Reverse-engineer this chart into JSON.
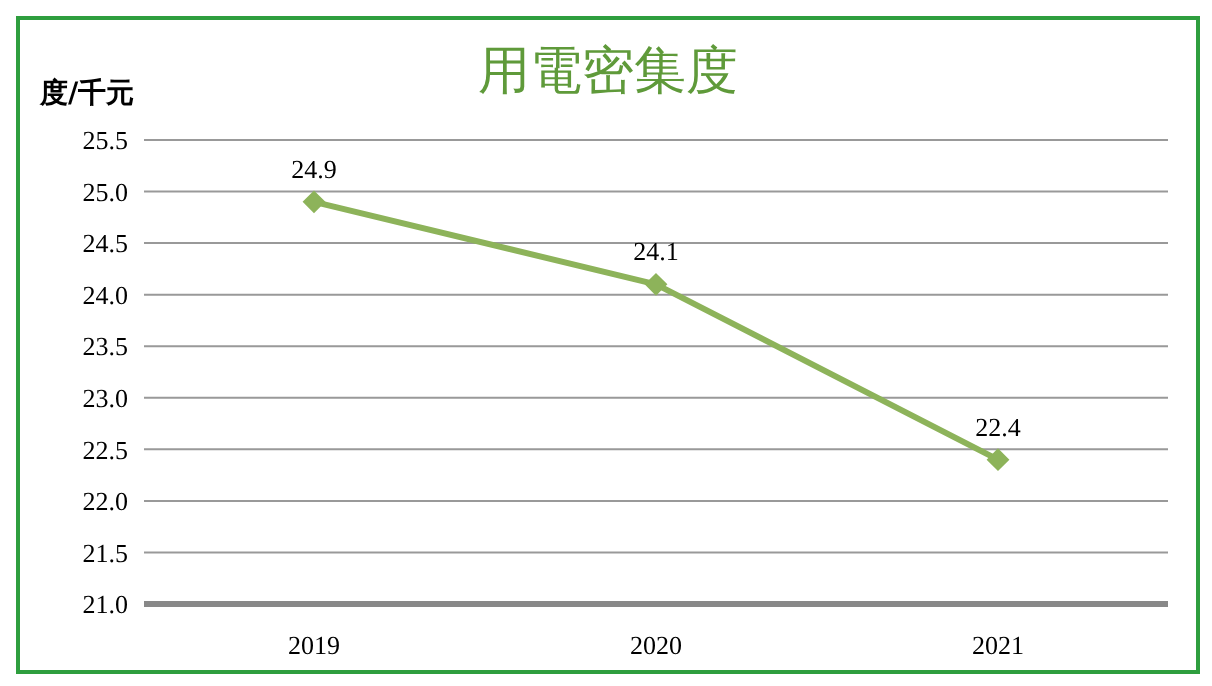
{
  "chart_data": {
    "type": "line",
    "title": "用電密集度",
    "ylabel": "度/千元",
    "categories": [
      "2019",
      "2020",
      "2021"
    ],
    "series": [
      {
        "color": "#8db35a",
        "values": [
          24.9,
          24.1,
          22.4
        ]
      }
    ],
    "ylim": [
      21.0,
      25.5
    ],
    "yticks": [
      {
        "value": 21,
        "label": "21.0"
      },
      {
        "value": 21.5,
        "label": "21.5"
      },
      {
        "value": 22,
        "label": "22.0"
      },
      {
        "value": 22.5,
        "label": "22.5"
      },
      {
        "value": 23,
        "label": "23.0"
      },
      {
        "value": 23.5,
        "label": "23.5"
      },
      {
        "value": 24,
        "label": "24.0"
      },
      {
        "value": 24.5,
        "label": "24.5"
      },
      {
        "value": 25,
        "label": "25.0"
      },
      {
        "value": 25.5,
        "label": "25.5"
      }
    ],
    "grid": "y",
    "marker": "diamond",
    "line_style": "solid",
    "data_labels": true,
    "legend": false
  }
}
